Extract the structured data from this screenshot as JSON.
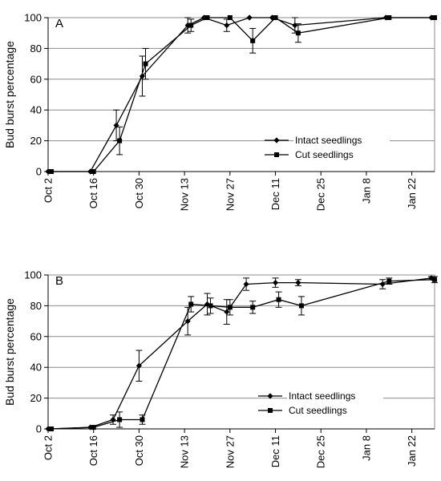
{
  "chart_data": [
    {
      "type": "line",
      "panel_label": "A",
      "ylabel": "Bud burst percentage",
      "xlabel": "",
      "ylim": [
        0,
        100
      ],
      "yticks": [
        0,
        20,
        40,
        60,
        80,
        100
      ],
      "xticks": [
        {
          "date": "2000-10-02",
          "label": "Oct 2"
        },
        {
          "date": "2000-10-16",
          "label": "Oct 16"
        },
        {
          "date": "2000-10-30",
          "label": "Oct 30"
        },
        {
          "date": "2000-11-13",
          "label": "Nov 13"
        },
        {
          "date": "2000-11-27",
          "label": "Nov 27"
        },
        {
          "date": "2000-12-11",
          "label": "Dec 11"
        },
        {
          "date": "2000-12-25",
          "label": "Dec 25"
        },
        {
          "date": "2001-01-08",
          "label": "Jan 8"
        },
        {
          "date": "2001-01-22",
          "label": "Jan 22"
        }
      ],
      "xlim": [
        "2000-10-02",
        "2001-01-29"
      ],
      "grid": "horizontal",
      "legend_placement": "lower-right",
      "series": [
        {
          "name": "Intact seedlings",
          "marker": "diamond",
          "points": [
            {
              "x": "2000-10-02",
              "y": 0,
              "err": 0
            },
            {
              "x": "2000-10-15",
              "y": 0,
              "err": 0
            },
            {
              "x": "2000-10-23",
              "y": 30,
              "err": 10
            },
            {
              "x": "2000-10-31",
              "y": 62,
              "err": 13
            },
            {
              "x": "2000-11-14",
              "y": 95,
              "err": 5
            },
            {
              "x": "2000-11-19",
              "y": 100,
              "err": 0
            },
            {
              "x": "2000-11-26",
              "y": 95,
              "err": 4
            },
            {
              "x": "2000-12-03",
              "y": 100,
              "err": 0
            },
            {
              "x": "2000-12-10",
              "y": 100,
              "err": 0
            },
            {
              "x": "2000-12-17",
              "y": 95,
              "err": 5
            },
            {
              "x": "2001-01-14",
              "y": 100,
              "err": 0
            },
            {
              "x": "2001-01-28",
              "y": 100,
              "err": 0
            }
          ]
        },
        {
          "name": "Cut seedlings",
          "marker": "square",
          "points": [
            {
              "x": "2000-10-03",
              "y": 0,
              "err": 0
            },
            {
              "x": "2000-10-16",
              "y": 0,
              "err": 0
            },
            {
              "x": "2000-10-24",
              "y": 20,
              "err": 9
            },
            {
              "x": "2000-11-01",
              "y": 70,
              "err": 10
            },
            {
              "x": "2000-11-15",
              "y": 95,
              "err": 4
            },
            {
              "x": "2000-11-20",
              "y": 100,
              "err": 0
            },
            {
              "x": "2000-11-27",
              "y": 100,
              "err": 0
            },
            {
              "x": "2000-12-04",
              "y": 85,
              "err": 8
            },
            {
              "x": "2000-12-11",
              "y": 100,
              "err": 0
            },
            {
              "x": "2000-12-18",
              "y": 90,
              "err": 6
            },
            {
              "x": "2001-01-15",
              "y": 100,
              "err": 0
            },
            {
              "x": "2001-01-29",
              "y": 100,
              "err": 0
            }
          ]
        }
      ]
    },
    {
      "type": "line",
      "panel_label": "B",
      "ylabel": "Bud burst percentage",
      "xlabel": "",
      "ylim": [
        0,
        100
      ],
      "yticks": [
        0,
        20,
        40,
        60,
        80,
        100
      ],
      "xticks": [
        {
          "date": "2000-10-02",
          "label": "Oct 2"
        },
        {
          "date": "2000-10-16",
          "label": "Oct 16"
        },
        {
          "date": "2000-10-30",
          "label": "Oct 30"
        },
        {
          "date": "2000-11-13",
          "label": "Nov 13"
        },
        {
          "date": "2000-11-27",
          "label": "Nov 27"
        },
        {
          "date": "2000-12-11",
          "label": "Dec 11"
        },
        {
          "date": "2000-12-25",
          "label": "Dec 25"
        },
        {
          "date": "2001-01-08",
          "label": "Jan 8"
        },
        {
          "date": "2001-01-22",
          "label": "Jan 22"
        }
      ],
      "xlim": [
        "2000-10-02",
        "2001-01-29"
      ],
      "grid": "horizontal",
      "legend_placement": "lower-right",
      "series": [
        {
          "name": "Intact seedlings",
          "marker": "diamond",
          "points": [
            {
              "x": "2000-10-02",
              "y": 0,
              "err": 0
            },
            {
              "x": "2000-10-15",
              "y": 1,
              "err": 0
            },
            {
              "x": "2000-10-22",
              "y": 6,
              "err": 3
            },
            {
              "x": "2000-10-30",
              "y": 41,
              "err": 10
            },
            {
              "x": "2000-11-14",
              "y": 70,
              "err": 9
            },
            {
              "x": "2000-11-20",
              "y": 81,
              "err": 7
            },
            {
              "x": "2000-11-26",
              "y": 76,
              "err": 8
            },
            {
              "x": "2000-12-02",
              "y": 94,
              "err": 4
            },
            {
              "x": "2000-12-11",
              "y": 95,
              "err": 3
            },
            {
              "x": "2000-12-18",
              "y": 95,
              "err": 2
            },
            {
              "x": "2001-01-13",
              "y": 94,
              "err": 3
            },
            {
              "x": "2001-01-28",
              "y": 98,
              "err": 1
            }
          ]
        },
        {
          "name": "Cut seedlings",
          "marker": "square",
          "points": [
            {
              "x": "2000-10-03",
              "y": 0,
              "err": 0
            },
            {
              "x": "2000-10-16",
              "y": 1,
              "err": 0
            },
            {
              "x": "2000-10-24",
              "y": 6,
              "err": 5
            },
            {
              "x": "2000-10-31",
              "y": 6,
              "err": 3
            },
            {
              "x": "2000-11-15",
              "y": 81,
              "err": 5
            },
            {
              "x": "2000-11-21",
              "y": 80,
              "err": 5
            },
            {
              "x": "2000-11-27",
              "y": 79,
              "err": 5
            },
            {
              "x": "2000-12-04",
              "y": 79,
              "err": 4
            },
            {
              "x": "2000-12-12",
              "y": 84,
              "err": 5
            },
            {
              "x": "2000-12-19",
              "y": 80,
              "err": 6
            },
            {
              "x": "2001-01-15",
              "y": 96,
              "err": 2
            },
            {
              "x": "2001-01-29",
              "y": 97,
              "err": 2
            }
          ]
        }
      ]
    }
  ]
}
